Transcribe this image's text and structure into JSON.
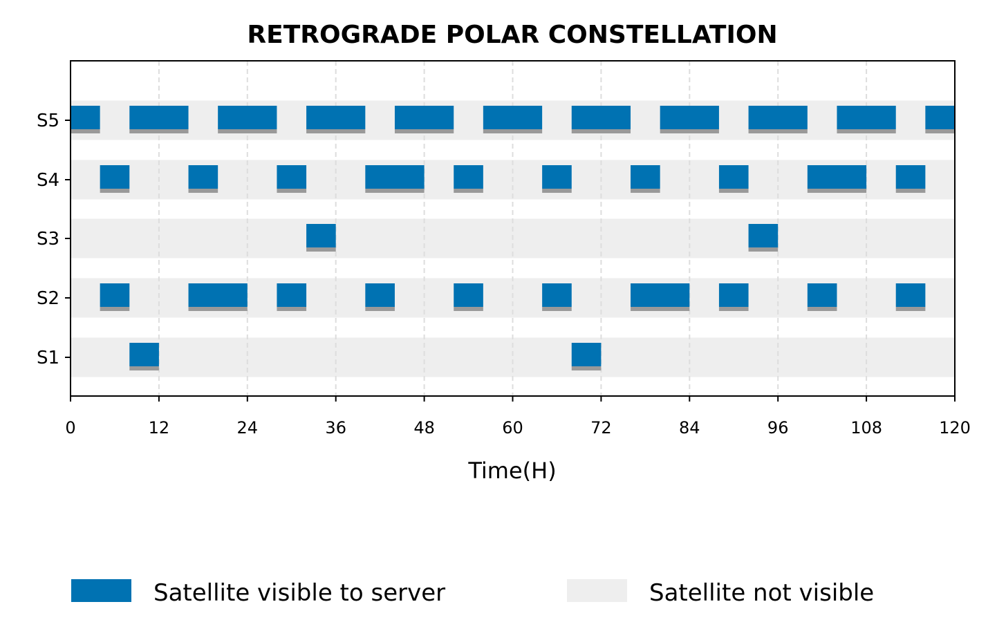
{
  "chart_data": {
    "type": "bar",
    "subtype": "broken-barh timeline",
    "title": "RETROGRADE POLAR CONSTELLATION",
    "xlabel": "Time(H)",
    "ylabel": "",
    "xlim": [
      0,
      120
    ],
    "xticks": [
      0,
      12,
      24,
      36,
      48,
      60,
      72,
      84,
      96,
      108,
      120
    ],
    "categories": [
      "S1",
      "S2",
      "S3",
      "S4",
      "S5"
    ],
    "grid": "vertical dashed at x ticks",
    "legend_position": "bottom-center",
    "colors": {
      "visible": "#0072B2",
      "visible_shadow": "#999999",
      "not_visible": "#EEEEEE",
      "grid": "#DDDDDD"
    },
    "legend": [
      {
        "label": "Satellite visible to server",
        "color": "#0072B2"
      },
      {
        "label": "Satellite not visible",
        "color": "#EEEEEE"
      }
    ],
    "series": [
      {
        "category": "S1",
        "intervals": [
          [
            8,
            12
          ],
          [
            68,
            72
          ]
        ]
      },
      {
        "category": "S2",
        "intervals": [
          [
            4,
            8
          ],
          [
            16,
            24
          ],
          [
            28,
            32
          ],
          [
            40,
            44
          ],
          [
            52,
            56
          ],
          [
            64,
            68
          ],
          [
            76,
            84
          ],
          [
            88,
            92
          ],
          [
            100,
            104
          ],
          [
            112,
            116
          ]
        ]
      },
      {
        "category": "S3",
        "intervals": [
          [
            32,
            36
          ],
          [
            92,
            96
          ]
        ]
      },
      {
        "category": "S4",
        "intervals": [
          [
            4,
            8
          ],
          [
            16,
            20
          ],
          [
            28,
            32
          ],
          [
            40,
            48
          ],
          [
            52,
            56
          ],
          [
            64,
            68
          ],
          [
            76,
            80
          ],
          [
            88,
            92
          ],
          [
            100,
            108
          ],
          [
            112,
            116
          ]
        ]
      },
      {
        "category": "S5",
        "intervals": [
          [
            0,
            4
          ],
          [
            8,
            16
          ],
          [
            20,
            28
          ],
          [
            32,
            40
          ],
          [
            44,
            52
          ],
          [
            56,
            64
          ],
          [
            68,
            76
          ],
          [
            80,
            88
          ],
          [
            92,
            100
          ],
          [
            104,
            112
          ],
          [
            116,
            120
          ]
        ]
      }
    ]
  }
}
